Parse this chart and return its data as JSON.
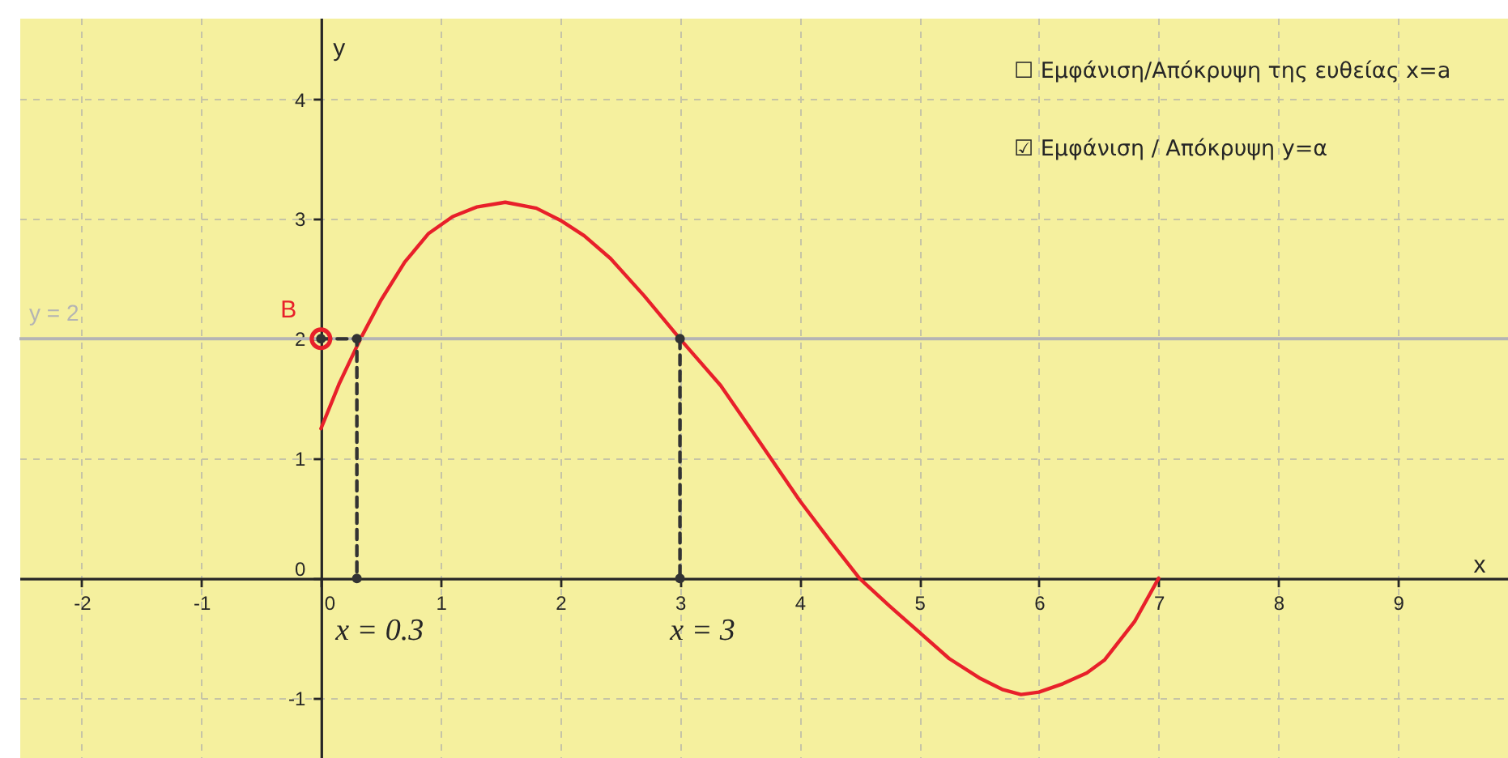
{
  "chart_data": {
    "type": "line",
    "xlabel": "x",
    "ylabel": "y",
    "xlim": [
      -2.52,
      9.92
    ],
    "ylim": [
      -1.5,
      4.68
    ],
    "xticks": [
      -2,
      -1,
      0,
      1,
      2,
      3,
      4,
      5,
      6,
      7,
      8,
      9
    ],
    "yticks": [
      -1,
      0,
      1,
      2,
      3,
      4
    ],
    "grid": true,
    "series": [
      {
        "color": "#e8202a",
        "x": [
          0,
          0.15,
          0.33,
          0.5,
          0.7,
          0.9,
          1.1,
          1.3,
          1.54,
          1.8,
          2.0,
          2.2,
          2.42,
          2.7,
          3.0,
          3.34,
          3.61,
          4.0,
          4.25,
          4.5,
          4.75,
          5.0,
          5.25,
          5.5,
          5.7,
          5.85,
          6.0,
          6.2,
          6.4,
          6.55,
          6.8,
          7.0
        ],
        "values": [
          1.25,
          1.62,
          2.0,
          2.32,
          2.64,
          2.88,
          3.02,
          3.1,
          3.14,
          3.09,
          2.99,
          2.86,
          2.67,
          2.36,
          2.0,
          1.61,
          1.22,
          0.65,
          0.32,
          0,
          -0.23,
          -0.45,
          -0.67,
          -0.83,
          -0.93,
          -0.97,
          -0.95,
          -0.88,
          -0.79,
          -0.68,
          -0.36,
          0
        ]
      },
      {
        "type": "line",
        "line_style": "dashed",
        "marker": "circle",
        "color": "#333333",
        "x": [
          0,
          0.3,
          0.3
        ],
        "values": [
          2,
          2,
          0
        ]
      },
      {
        "type": "line",
        "line_style": "dashed",
        "marker": "circle",
        "color": "#333333",
        "x": [
          3,
          3
        ],
        "values": [
          2,
          0
        ]
      },
      {
        "type": "scatter",
        "name": "B",
        "marker": "circle",
        "color": "#e8202a",
        "x": [
          0
        ],
        "values": [
          2
        ]
      }
    ],
    "ref_lines": [
      {
        "axis": "y",
        "value": 2,
        "label": "y = 2",
        "color": "#b4b4b4"
      }
    ],
    "annotations": [
      {
        "text": "x = 0.3",
        "x": 0.3,
        "y": 0
      },
      {
        "text": "x = 3",
        "x": 3,
        "y": 0
      },
      "☐ Εμφάνιση/Απόκρυψη της ευθείας x=a",
      "☑ Εμφάνιση / Απόκρυψη y=α"
    ]
  }
}
